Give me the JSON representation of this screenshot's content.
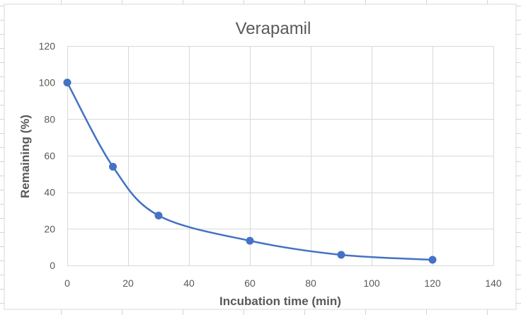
{
  "colors": {
    "series": "#4472c4",
    "gridline": "#d9d9d9",
    "text": "#595959",
    "sheet_gridline": "#d4d4d4",
    "chart_border": "#d9d9d9",
    "background": "#ffffff"
  },
  "chart_data": {
    "type": "scatter",
    "title": "Verapamil",
    "xlabel": "Incubation time (min)",
    "ylabel": "Remaining (%)",
    "xlim": [
      0,
      140
    ],
    "ylim": [
      0,
      120
    ],
    "xticks": [
      "0",
      "20",
      "40",
      "60",
      "80",
      "100",
      "120",
      "140"
    ],
    "yticks": [
      "0",
      "20",
      "40",
      "60",
      "80",
      "100",
      "120"
    ],
    "grid": true,
    "legend": "none",
    "line_style": "smoothed",
    "marker": "circle",
    "series": [
      {
        "x": [
          0,
          15,
          30,
          60,
          90,
          120
        ],
        "y": [
          100,
          54,
          27.3,
          13.5,
          5.8,
          3.1
        ]
      }
    ]
  }
}
